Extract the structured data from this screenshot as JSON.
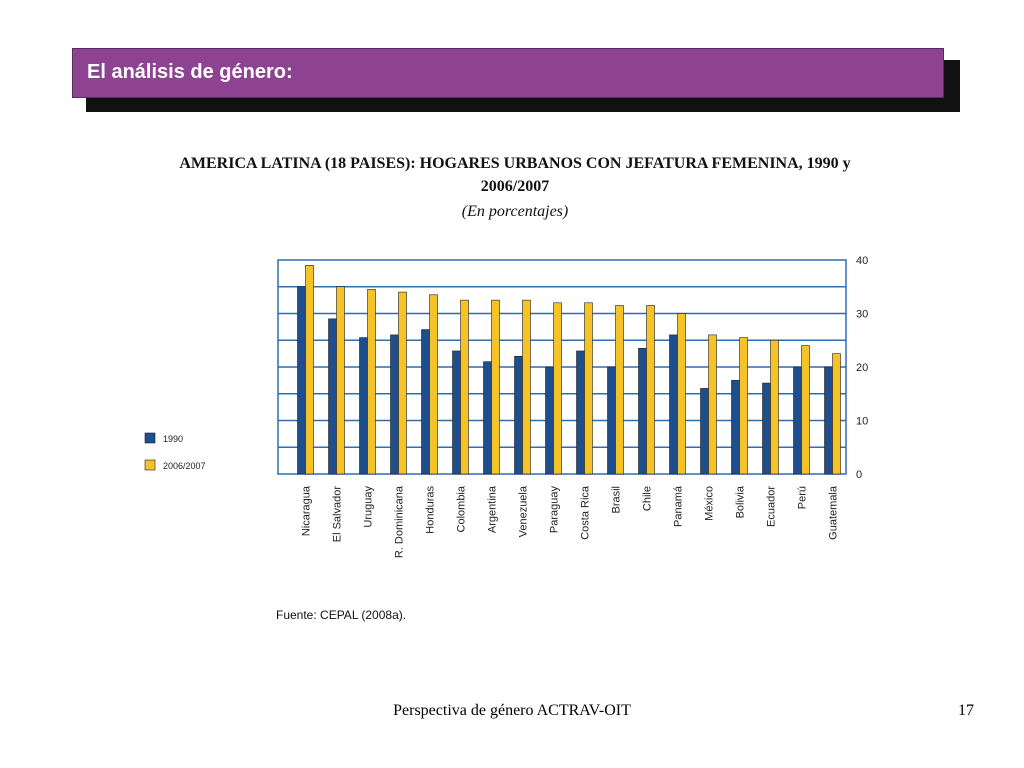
{
  "header": {
    "title": "El análisis de género:"
  },
  "colors": {
    "header_bg": "#8e4392",
    "series_1990": "#1f4e8c",
    "series_2006": "#f5c227",
    "gridline": "#2f6fb0"
  },
  "chart_data": {
    "type": "bar",
    "title": "AMERICA LATINA (18 PAISES): HOGARES URBANOS CON JEFATURA FEMENINA, 1990 y 2006/2007",
    "subtitle": "(En porcentajes)",
    "categories": [
      "Nicaragua",
      "El Salvador",
      "Uruguay",
      "R. Dominicana",
      "Honduras",
      "Colombia",
      "Argentina",
      "Venezuela",
      "Paraguay",
      "Costa Rica",
      "Brasil",
      "Chile",
      "Panamá",
      "México",
      "Bolivia",
      "Ecuador",
      "Perú",
      "Guatemala"
    ],
    "series": [
      {
        "name": "1990",
        "values": [
          35,
          29,
          25.5,
          26,
          27,
          23,
          21,
          22,
          20,
          23,
          20,
          23.5,
          26,
          16,
          17.5,
          17,
          20,
          20
        ]
      },
      {
        "name": "2006/2007",
        "values": [
          39,
          35,
          34.5,
          34,
          33.5,
          32.5,
          32.5,
          32.5,
          32,
          32,
          31.5,
          31.5,
          30,
          26,
          25.5,
          25,
          24,
          22.5
        ]
      }
    ],
    "ylim": [
      0,
      40
    ],
    "yticks": [
      "0",
      "10",
      "20",
      "30",
      "40"
    ],
    "grid": true,
    "legend_position": "left",
    "source": "Fuente: CEPAL (2008a)."
  },
  "footer": {
    "text": "Perspectiva de género ACTRAV-OIT",
    "page": "17"
  }
}
